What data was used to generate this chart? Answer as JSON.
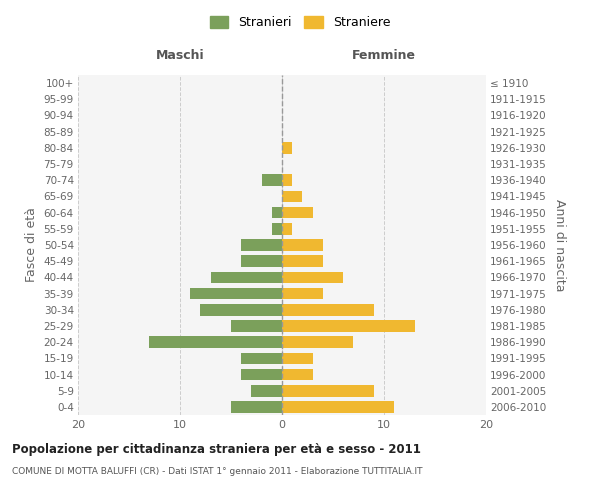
{
  "age_groups": [
    "0-4",
    "5-9",
    "10-14",
    "15-19",
    "20-24",
    "25-29",
    "30-34",
    "35-39",
    "40-44",
    "45-49",
    "50-54",
    "55-59",
    "60-64",
    "65-69",
    "70-74",
    "75-79",
    "80-84",
    "85-89",
    "90-94",
    "95-99",
    "100+"
  ],
  "birth_years": [
    "2006-2010",
    "2001-2005",
    "1996-2000",
    "1991-1995",
    "1986-1990",
    "1981-1985",
    "1976-1980",
    "1971-1975",
    "1966-1970",
    "1961-1965",
    "1956-1960",
    "1951-1955",
    "1946-1950",
    "1941-1945",
    "1936-1940",
    "1931-1935",
    "1926-1930",
    "1921-1925",
    "1916-1920",
    "1911-1915",
    "≤ 1910"
  ],
  "maschi": [
    5,
    3,
    4,
    4,
    13,
    5,
    8,
    9,
    7,
    4,
    4,
    1,
    1,
    0,
    2,
    0,
    0,
    0,
    0,
    0,
    0
  ],
  "femmine": [
    11,
    9,
    3,
    3,
    7,
    13,
    9,
    4,
    6,
    4,
    4,
    1,
    3,
    2,
    1,
    0,
    1,
    0,
    0,
    0,
    0
  ],
  "color_maschi": "#7ba05b",
  "color_femmine": "#f0b830",
  "xlim": 20,
  "title": "Popolazione per cittadinanza straniera per età e sesso - 2011",
  "subtitle": "COMUNE DI MOTTA BALUFFI (CR) - Dati ISTAT 1° gennaio 2011 - Elaborazione TUTTITALIA.IT",
  "ylabel_left": "Fasce di età",
  "ylabel_right": "Anni di nascita",
  "legend_maschi": "Stranieri",
  "legend_femmine": "Straniere",
  "header_maschi": "Maschi",
  "header_femmine": "Femmine",
  "bg_color": "#f5f5f5",
  "grid_color": "#cccccc"
}
